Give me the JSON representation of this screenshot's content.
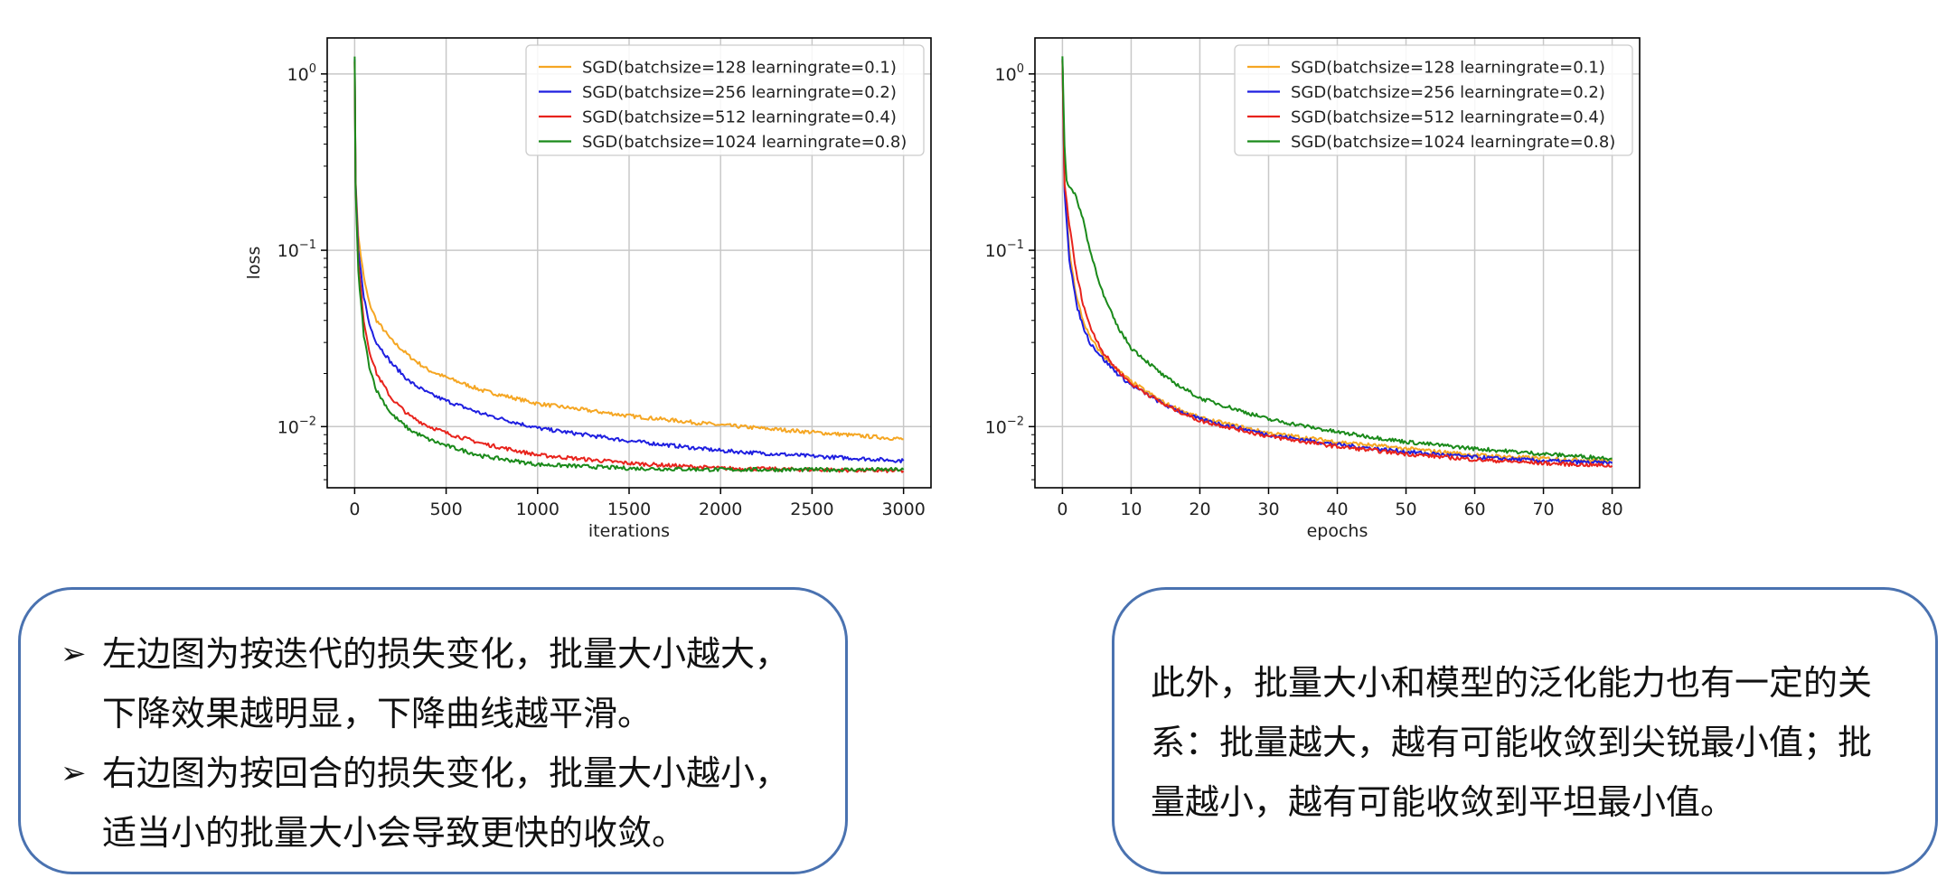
{
  "charts": [
    {
      "id": "left",
      "type": "line",
      "xlabel": "iterations",
      "ylabel": "loss",
      "yscale": "log",
      "xlim": [
        -150,
        3150
      ],
      "ylim": [
        0.0045,
        1.6
      ],
      "x_ticks": [
        0,
        500,
        1000,
        1500,
        2000,
        2500,
        3000
      ],
      "y_ticks": [
        {
          "value": 1,
          "base": "10",
          "exp": "0"
        },
        {
          "value": 0.1,
          "base": "10",
          "exp": "−1"
        },
        {
          "value": 0.01,
          "base": "10",
          "exp": "−2"
        }
      ],
      "grid": true,
      "legend_position": "top-right",
      "series": [
        {
          "name": "SGD(batchsize=128 learningrate=0.1)",
          "color": "#f5a623",
          "x": [
            0,
            5,
            20,
            50,
            80,
            120,
            200,
            300,
            400,
            500,
            700,
            1000,
            1500,
            2000,
            2500,
            3000
          ],
          "y": [
            1.2,
            0.25,
            0.12,
            0.07,
            0.05,
            0.04,
            0.031,
            0.025,
            0.021,
            0.019,
            0.016,
            0.0135,
            0.0115,
            0.0102,
            0.0093,
            0.0085
          ]
        },
        {
          "name": "SGD(batchsize=256 learningrate=0.2)",
          "color": "#1f1fe0",
          "x": [
            0,
            5,
            20,
            50,
            80,
            120,
            200,
            300,
            400,
            500,
            700,
            1000,
            1500,
            2000,
            2500,
            3000
          ],
          "y": [
            1.2,
            0.24,
            0.1,
            0.055,
            0.038,
            0.03,
            0.023,
            0.018,
            0.0155,
            0.014,
            0.0118,
            0.0098,
            0.0083,
            0.0073,
            0.0068,
            0.0064
          ]
        },
        {
          "name": "SGD(batchsize=512 learningrate=0.4)",
          "color": "#e8231c",
          "x": [
            0,
            5,
            20,
            50,
            80,
            120,
            200,
            300,
            400,
            500,
            700,
            1000,
            1500,
            2000,
            2500,
            3000
          ],
          "y": [
            1.2,
            0.23,
            0.085,
            0.04,
            0.027,
            0.02,
            0.0145,
            0.0115,
            0.0101,
            0.0092,
            0.008,
            0.0069,
            0.0062,
            0.0058,
            0.0057,
            0.0056
          ]
        },
        {
          "name": "SGD(batchsize=1024 learningrate=0.8)",
          "color": "#1a8a1a",
          "x": [
            0,
            5,
            20,
            50,
            80,
            120,
            200,
            300,
            400,
            500,
            700,
            1000,
            1500,
            2000,
            2500,
            3000
          ],
          "y": [
            1.25,
            0.22,
            0.075,
            0.033,
            0.022,
            0.016,
            0.0118,
            0.0096,
            0.0085,
            0.0078,
            0.0068,
            0.0061,
            0.0058,
            0.0057,
            0.0057,
            0.0057
          ]
        }
      ]
    },
    {
      "id": "right",
      "type": "line",
      "xlabel": "epochs",
      "ylabel": "loss",
      "yscale": "log",
      "xlim": [
        -4,
        84
      ],
      "ylim": [
        0.0045,
        1.6
      ],
      "x_ticks": [
        0,
        10,
        20,
        30,
        40,
        50,
        60,
        70,
        80
      ],
      "y_ticks": [
        {
          "value": 1,
          "base": "10",
          "exp": "0"
        },
        {
          "value": 0.1,
          "base": "10",
          "exp": "−1"
        },
        {
          "value": 0.01,
          "base": "10",
          "exp": "−2"
        }
      ],
      "grid": true,
      "legend_position": "top-right",
      "series": [
        {
          "name": "SGD(batchsize=128 learningrate=0.1)",
          "color": "#f5a623",
          "x": [
            0,
            0.3,
            1,
            2,
            3,
            4,
            6,
            8,
            10,
            15,
            20,
            30,
            40,
            50,
            60,
            70,
            80
          ],
          "y": [
            1.2,
            0.25,
            0.1,
            0.055,
            0.04,
            0.032,
            0.025,
            0.021,
            0.018,
            0.0135,
            0.0112,
            0.0092,
            0.0082,
            0.0075,
            0.0069,
            0.0066,
            0.0064
          ]
        },
        {
          "name": "SGD(batchsize=256 learningrate=0.2)",
          "color": "#1f1fe0",
          "x": [
            0,
            0.3,
            1,
            2,
            3,
            4,
            6,
            8,
            10,
            15,
            20,
            30,
            40,
            50,
            60,
            70,
            80
          ],
          "y": [
            1.2,
            0.22,
            0.09,
            0.05,
            0.037,
            0.03,
            0.024,
            0.02,
            0.0172,
            0.0132,
            0.011,
            0.009,
            0.0079,
            0.0072,
            0.0067,
            0.0064,
            0.0062
          ]
        },
        {
          "name": "SGD(batchsize=512 learningrate=0.4)",
          "color": "#e8231c",
          "x": [
            0,
            0.3,
            1,
            2,
            3,
            4,
            6,
            8,
            10,
            15,
            20,
            30,
            40,
            50,
            60,
            70,
            80
          ],
          "y": [
            1.2,
            0.24,
            0.14,
            0.075,
            0.05,
            0.037,
            0.026,
            0.021,
            0.0175,
            0.0132,
            0.0108,
            0.0088,
            0.0077,
            0.007,
            0.0065,
            0.0062,
            0.006
          ]
        },
        {
          "name": "SGD(batchsize=1024 learningrate=0.8)",
          "color": "#1a8a1a",
          "x": [
            0,
            0.3,
            0.6,
            1,
            2,
            3,
            4,
            6,
            8,
            10,
            15,
            20,
            30,
            40,
            50,
            60,
            70,
            80
          ],
          "y": [
            1.25,
            0.4,
            0.25,
            0.23,
            0.2,
            0.15,
            0.1,
            0.055,
            0.037,
            0.028,
            0.019,
            0.0145,
            0.011,
            0.0093,
            0.0082,
            0.0075,
            0.007,
            0.0066
          ]
        }
      ]
    }
  ],
  "text_boxes": {
    "left": {
      "bullet_symbol": "➢",
      "items": [
        {
          "line1": "左边图为按迭代的损失变化，批量大小越大，",
          "line2": "下降效果越明显，下降曲线越平滑。"
        },
        {
          "line1": "右边图为按回合的损失变化，批量大小越小，",
          "line2": "适当小的批量大小会导致更快的收敛。"
        }
      ]
    },
    "right": {
      "lines": [
        "此外，批量大小和模型的泛化能力也有一定的关",
        "系：批量越大，越有可能收敛到尖锐最小值；批",
        "量越小，越有可能收敛到平坦最小值。"
      ]
    }
  }
}
